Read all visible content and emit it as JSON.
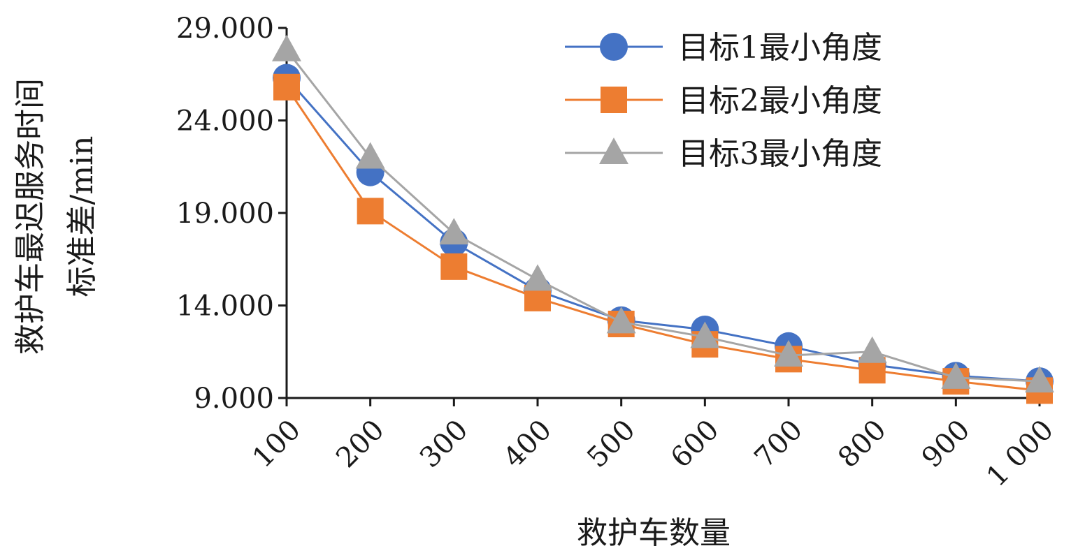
{
  "chart_data": {
    "type": "line",
    "title": "",
    "xlabel": "救护车数量",
    "ylabel": "救护车最迟服务时间",
    "ylabel_line2": "标准差/min",
    "categories": [
      "100",
      "200",
      "300",
      "400",
      "500",
      "600",
      "700",
      "800",
      "900",
      "1 000"
    ],
    "ylim": [
      9.0,
      29.0
    ],
    "yticks": [
      "9.000",
      "14.000",
      "19.000",
      "24.000",
      "29.000"
    ],
    "ytick_values": [
      9,
      14,
      19,
      24,
      29
    ],
    "grid": false,
    "legend_position": "top-right",
    "series": [
      {
        "name": "目标1最小角度",
        "values": [
          26.3,
          21.2,
          17.4,
          14.8,
          13.2,
          12.7,
          11.8,
          10.8,
          10.2,
          9.9
        ],
        "color": "#4472C4",
        "marker": "circle"
      },
      {
        "name": "目标2最小角度",
        "values": [
          25.8,
          19.1,
          16.1,
          14.4,
          13.0,
          11.9,
          11.1,
          10.5,
          9.9,
          9.4
        ],
        "color": "#ED7D31",
        "marker": "square"
      },
      {
        "name": "目标3最小角度",
        "values": [
          27.8,
          22.0,
          17.9,
          15.4,
          13.1,
          12.3,
          11.3,
          11.5,
          10.1,
          9.9
        ],
        "color": "#A5A5A5",
        "marker": "triangle"
      }
    ]
  }
}
